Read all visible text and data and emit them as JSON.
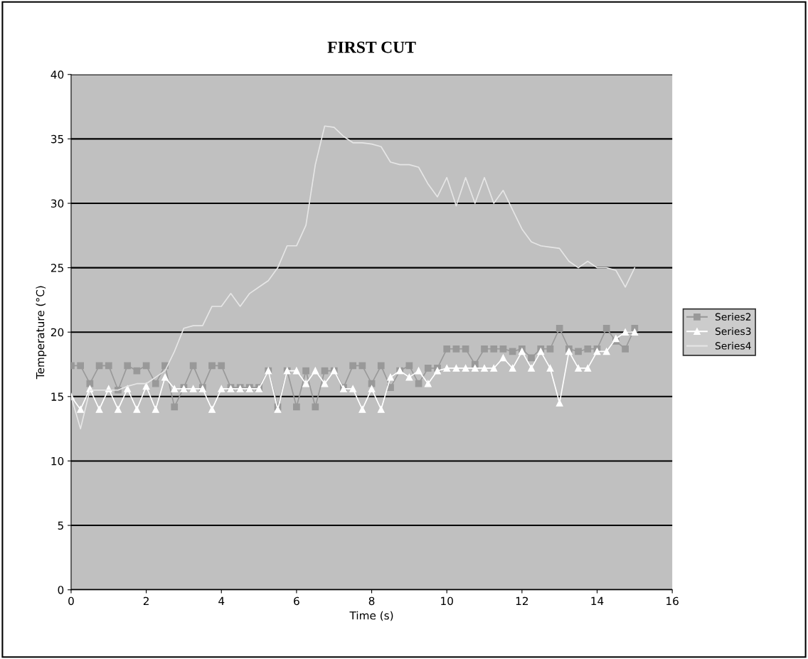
{
  "chart_data": {
    "type": "line",
    "title": "FIRST CUT",
    "xlabel": "Time (s)",
    "ylabel": "Temperature (°C)",
    "xlim": [
      0,
      16
    ],
    "xticks": [
      0,
      2,
      4,
      6,
      8,
      10,
      12,
      14,
      16
    ],
    "ylim": [
      0,
      40
    ],
    "yticks": [
      0,
      5,
      10,
      15,
      20,
      25,
      30,
      35,
      40
    ],
    "grid": "y",
    "legend": "right",
    "x": [
      0,
      0.25,
      0.5,
      0.75,
      1,
      1.25,
      1.5,
      1.75,
      2,
      2.25,
      2.5,
      2.75,
      3,
      3.25,
      3.5,
      3.75,
      4,
      4.25,
      4.5,
      4.75,
      5,
      5.25,
      5.5,
      5.75,
      6,
      6.25,
      6.5,
      6.75,
      7,
      7.25,
      7.5,
      7.75,
      8,
      8.25,
      8.5,
      8.75,
      9,
      9.25,
      9.5,
      9.75,
      10,
      10.25,
      10.5,
      10.75,
      11,
      11.25,
      11.5,
      11.75,
      12,
      12.25,
      12.5,
      12.75,
      13,
      13.25,
      13.5,
      13.75,
      14,
      14.25,
      14.5,
      14.75,
      15
    ],
    "series": [
      {
        "name": "Series2",
        "color": "#999999",
        "marker": "square",
        "values": [
          17.4,
          17.4,
          16,
          17.4,
          17.4,
          15.5,
          17.4,
          17,
          17.4,
          16,
          17.4,
          14.2,
          15.7,
          17.4,
          15.7,
          17.4,
          17.4,
          15.7,
          15.7,
          15.7,
          15.7,
          17,
          14.2,
          17,
          14.2,
          17,
          14.2,
          17,
          17,
          15.7,
          17.4,
          17.4,
          16,
          17.4,
          15.7,
          17,
          17.4,
          16,
          17.2,
          17.2,
          18.7,
          18.7,
          18.7,
          17.5,
          18.7,
          18.7,
          18.7,
          18.5,
          18.7,
          18,
          18.7,
          18.7,
          20.3,
          18.7,
          18.5,
          18.7,
          18.7,
          20.3,
          19.3,
          18.7,
          20.3
        ]
      },
      {
        "name": "Series3",
        "color": "#ffffff",
        "marker": "triangle",
        "values": [
          15,
          14,
          15.6,
          14,
          15.6,
          14,
          15.6,
          14,
          15.8,
          14,
          16.5,
          15.6,
          15.6,
          15.6,
          15.6,
          14,
          15.6,
          15.6,
          15.6,
          15.6,
          15.6,
          17,
          14,
          17,
          17,
          16,
          17,
          16,
          17,
          15.6,
          15.6,
          14,
          15.6,
          14,
          16.5,
          17,
          16.5,
          17,
          16,
          17,
          17.2,
          17.2,
          17.2,
          17.2,
          17.2,
          17.2,
          18,
          17.2,
          18.5,
          17.2,
          18.5,
          17.2,
          14.5,
          18.5,
          17.2,
          17.2,
          18.5,
          18.5,
          19.5,
          20,
          20
        ]
      },
      {
        "name": "Series4",
        "color": "#e6e6e6",
        "marker": "none",
        "values": [
          15,
          12.5,
          15.5,
          15.5,
          15.5,
          15.5,
          15.8,
          16,
          16,
          16.5,
          17,
          18.5,
          20.3,
          20.5,
          20.5,
          22,
          22,
          23,
          22,
          23,
          23.5,
          24,
          25,
          26.7,
          26.7,
          28.3,
          33,
          36,
          35.9,
          35.2,
          34.7,
          34.7,
          34.6,
          34.4,
          33.2,
          33,
          33,
          32.8,
          31.5,
          30.5,
          32,
          29.8,
          32,
          30,
          32,
          30,
          31,
          29.5,
          28,
          27,
          26.7,
          26.6,
          26.5,
          25.5,
          25,
          25.5,
          25,
          25,
          24.8,
          23.5,
          25
        ]
      }
    ]
  }
}
